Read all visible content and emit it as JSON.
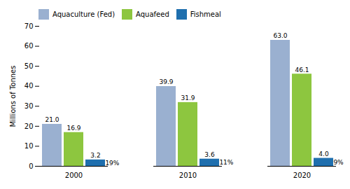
{
  "chart_data": {
    "type": "bar",
    "categories": [
      "2000",
      "2010",
      "2020"
    ],
    "series": [
      {
        "name": "Aquaculture (Fed)",
        "color": "#9ab0d0",
        "values": [
          21.0,
          39.9,
          63.0
        ],
        "value_labels": [
          "21.0",
          "39.9",
          "63.0"
        ]
      },
      {
        "name": "Aquafeed",
        "color": "#8dc63f",
        "values": [
          16.9,
          31.9,
          46.1
        ],
        "value_labels": [
          "16.9",
          "31.9",
          "46.1"
        ]
      },
      {
        "name": "Fishmeal",
        "color": "#1f6fae",
        "values": [
          3.2,
          3.6,
          4.0
        ],
        "value_labels": [
          "3.2",
          "3.6",
          "4.0"
        ],
        "annotations": [
          "19%",
          "11%",
          "9%"
        ]
      }
    ],
    "ylabel": "Millions of Tonnes",
    "ylim": [
      0,
      70
    ],
    "yticks": [
      0,
      10,
      20,
      30,
      40,
      50,
      60,
      70
    ],
    "grid": false,
    "legend": "upper left",
    "data_labels": true
  }
}
